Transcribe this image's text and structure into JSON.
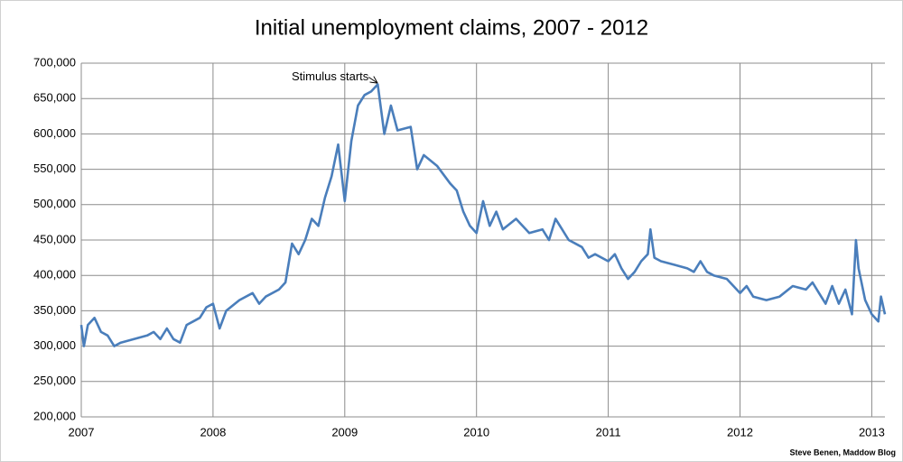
{
  "chart_data": {
    "type": "line",
    "title": "Initial unemployment claims, 2007 - 2012",
    "annotation": "Stimulus starts",
    "credit": "Steve Benen, Maddow Blog",
    "x": [
      2007.0,
      2007.02,
      2007.05,
      2007.1,
      2007.15,
      2007.2,
      2007.25,
      2007.3,
      2007.4,
      2007.5,
      2007.55,
      2007.6,
      2007.65,
      2007.7,
      2007.75,
      2007.8,
      2007.85,
      2007.9,
      2007.95,
      2008.0,
      2008.05,
      2008.1,
      2008.2,
      2008.3,
      2008.35,
      2008.4,
      2008.5,
      2008.55,
      2008.6,
      2008.65,
      2008.7,
      2008.75,
      2008.8,
      2008.85,
      2008.9,
      2008.95,
      2009.0,
      2009.05,
      2009.1,
      2009.15,
      2009.2,
      2009.25,
      2009.3,
      2009.35,
      2009.4,
      2009.5,
      2009.55,
      2009.6,
      2009.7,
      2009.8,
      2009.85,
      2009.9,
      2009.95,
      2010.0,
      2010.05,
      2010.1,
      2010.15,
      2010.2,
      2010.3,
      2010.4,
      2010.5,
      2010.55,
      2010.6,
      2010.65,
      2010.7,
      2010.8,
      2010.85,
      2010.9,
      2011.0,
      2011.05,
      2011.1,
      2011.15,
      2011.2,
      2011.25,
      2011.3,
      2011.32,
      2011.35,
      2011.4,
      2011.5,
      2011.6,
      2011.65,
      2011.7,
      2011.75,
      2011.8,
      2011.9,
      2012.0,
      2012.05,
      2012.1,
      2012.2,
      2012.3,
      2012.4,
      2012.5,
      2012.55,
      2012.6,
      2012.65,
      2012.7,
      2012.75,
      2012.8,
      2012.85,
      2012.88,
      2012.9,
      2012.95,
      2013.0,
      2013.05,
      2013.07,
      2013.1
    ],
    "series": [
      {
        "name": "Initial claims",
        "color": "#4a7ebb",
        "values": [
          330000,
          300000,
          330000,
          340000,
          320000,
          315000,
          300000,
          305000,
          310000,
          315000,
          320000,
          310000,
          325000,
          310000,
          305000,
          330000,
          335000,
          340000,
          355000,
          360000,
          325000,
          350000,
          365000,
          375000,
          360000,
          370000,
          380000,
          390000,
          445000,
          430000,
          450000,
          480000,
          470000,
          510000,
          540000,
          585000,
          505000,
          590000,
          640000,
          655000,
          660000,
          670000,
          600000,
          640000,
          605000,
          610000,
          550000,
          570000,
          555000,
          530000,
          520000,
          490000,
          470000,
          460000,
          505000,
          470000,
          490000,
          465000,
          480000,
          460000,
          465000,
          450000,
          480000,
          465000,
          450000,
          440000,
          425000,
          430000,
          420000,
          430000,
          410000,
          395000,
          405000,
          420000,
          430000,
          465000,
          425000,
          420000,
          415000,
          410000,
          405000,
          420000,
          405000,
          400000,
          395000,
          375000,
          385000,
          370000,
          365000,
          370000,
          385000,
          380000,
          390000,
          375000,
          360000,
          385000,
          360000,
          380000,
          345000,
          450000,
          410000,
          365000,
          345000,
          335000,
          370000,
          345000
        ]
      }
    ],
    "xlim": [
      2007,
      2013.1
    ],
    "xticks": [
      2007,
      2008,
      2009,
      2010,
      2011,
      2012,
      2013
    ],
    "ylim": [
      200000,
      700000
    ],
    "yticks": [
      {
        "value": 200000,
        "label": "200,000"
      },
      {
        "value": 250000,
        "label": "250,000"
      },
      {
        "value": 300000,
        "label": "300,000"
      },
      {
        "value": 350000,
        "label": "350,000"
      },
      {
        "value": 400000,
        "label": "400,000"
      },
      {
        "value": 450000,
        "label": "450,000"
      },
      {
        "value": 500000,
        "label": "500,000"
      },
      {
        "value": 550000,
        "label": "550,000"
      },
      {
        "value": 600000,
        "label": "600,000"
      },
      {
        "value": 650000,
        "label": "650,000"
      },
      {
        "value": 700000,
        "label": "700,000"
      }
    ],
    "grid": true
  }
}
